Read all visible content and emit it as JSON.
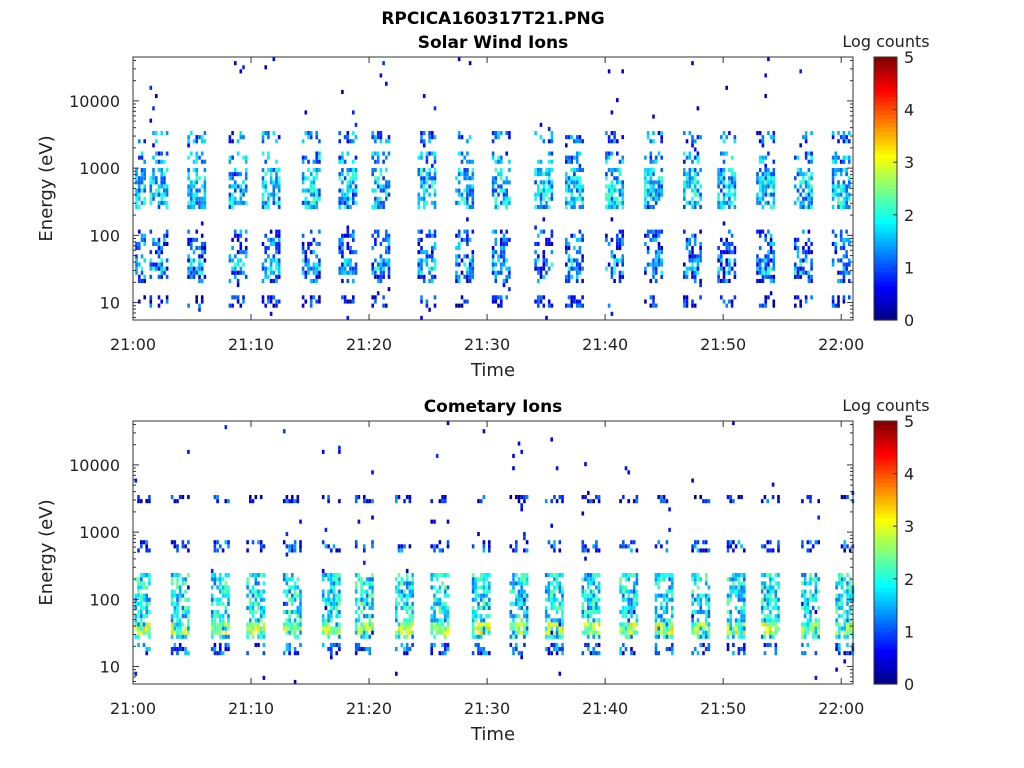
{
  "title": "RPCICA160317T21.PNG",
  "colormap": [
    "#00007f",
    "#0000ff",
    "#007fff",
    "#00ffff",
    "#7fff7f",
    "#ffff00",
    "#ff7f00",
    "#ff0000",
    "#7f0000"
  ],
  "chart_data": [
    {
      "type": "heatmap",
      "title": "Solar Wind Ions",
      "xlabel": "Time",
      "ylabel": "Energy (eV)",
      "x_ticks": [
        "21:00",
        "21:10",
        "21:20",
        "21:30",
        "21:40",
        "21:50",
        "22:00"
      ],
      "y_ticks": [
        "10",
        "100",
        "1000",
        "10000"
      ],
      "y_scale": "log",
      "ylim": [
        5.5,
        45000
      ],
      "xlim_minutes": [
        0,
        61
      ],
      "colorbar": {
        "label": "Log counts",
        "ticks": [
          "0",
          "1",
          "2",
          "3",
          "4",
          "5"
        ],
        "range": [
          0,
          5
        ]
      },
      "sweep_minutes": [
        0.1,
        2.0,
        5.2,
        8.7,
        11.5,
        14.9,
        18.0,
        20.8,
        24.7,
        27.9,
        31.0,
        34.6,
        37.2,
        40.6,
        43.9,
        47.2,
        50.1,
        53.4,
        56.6,
        59.8
      ],
      "bands": [
        {
          "e_low": 20,
          "e_high": 120,
          "level": 1.0
        },
        {
          "e_low": 25,
          "e_high": 45,
          "level": 1.5
        },
        {
          "e_low": 250,
          "e_high": 1000,
          "level": 1.6
        },
        {
          "e_low": 1200,
          "e_high": 1800,
          "level": 1.4
        },
        {
          "e_low": 2500,
          "e_high": 3500,
          "level": 1.2
        },
        {
          "e_low": 8,
          "e_high": 12,
          "level": 0.7
        }
      ]
    },
    {
      "type": "heatmap",
      "title": "Cometary Ions",
      "xlabel": "Time",
      "ylabel": "Energy (eV)",
      "x_ticks": [
        "21:00",
        "21:10",
        "21:20",
        "21:30",
        "21:40",
        "21:50",
        "22:00"
      ],
      "y_ticks": [
        "10",
        "100",
        "1000",
        "10000"
      ],
      "y_scale": "log",
      "ylim": [
        5.5,
        45000
      ],
      "xlim_minutes": [
        0,
        61
      ],
      "colorbar": {
        "label": "Log counts",
        "ticks": [
          "0",
          "1",
          "2",
          "3",
          "4",
          "5"
        ],
        "range": [
          0,
          5
        ]
      },
      "sweep_minutes": [
        0.5,
        3.8,
        7.2,
        10.2,
        13.3,
        16.6,
        19.4,
        22.8,
        25.8,
        29.3,
        32.5,
        35.5,
        38.6,
        41.8,
        44.8,
        47.9,
        50.9,
        53.8,
        57.2,
        60.1
      ],
      "bands": [
        {
          "e_low": 25,
          "e_high": 250,
          "level": 1.8
        },
        {
          "e_low": 28,
          "e_high": 45,
          "level": 2.7
        },
        {
          "e_low": 500,
          "e_high": 800,
          "level": 0.9
        },
        {
          "e_low": 2800,
          "e_high": 3400,
          "level": 0.7
        },
        {
          "e_low": 15,
          "e_high": 22,
          "level": 1.0
        }
      ]
    }
  ]
}
